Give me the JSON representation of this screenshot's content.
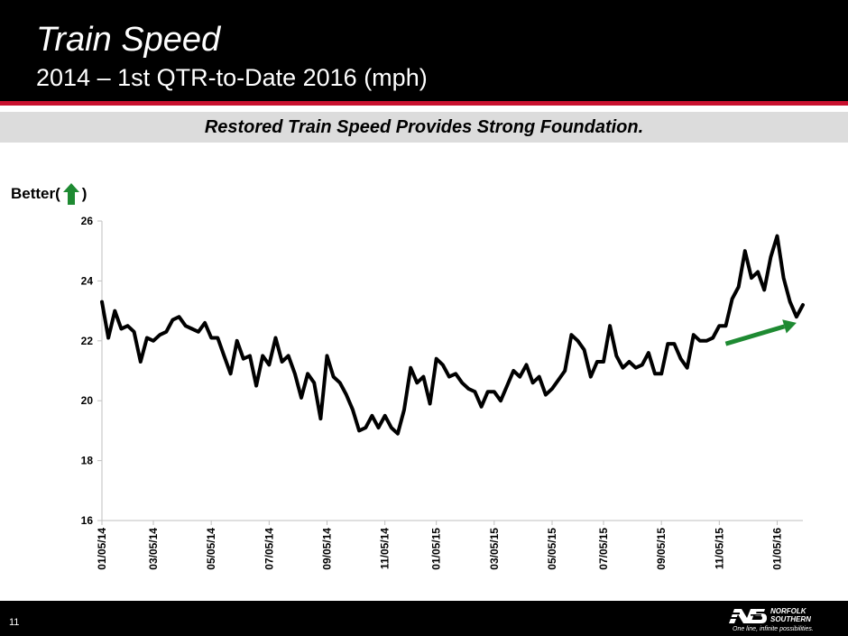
{
  "header": {
    "title": "Train Speed",
    "subtitle": "2014 – 1st QTR-to-Date 2016 (mph)"
  },
  "banner": {
    "text": "Restored Train Speed Provides Strong Foundation."
  },
  "annotation": {
    "better_prefix": "Better(",
    "better_suffix": ")",
    "icon": "green-up-arrow-icon"
  },
  "footer": {
    "page_number": "11",
    "logo": {
      "name": "NS",
      "line1": "NORFOLK",
      "line2": "SOUTHERN",
      "tagline": "One line, infinite possibilities."
    }
  },
  "colors": {
    "header_bg": "#000000",
    "accent_red": "#c8102e",
    "line": "#000000",
    "trend_arrow": "#1e8a32",
    "banner_bg": "#dcdcdc"
  },
  "chart_data": {
    "type": "line",
    "title": "",
    "xlabel": "",
    "ylabel": "",
    "ylim": [
      16,
      26
    ],
    "yticks": [
      16,
      18,
      20,
      22,
      24,
      26
    ],
    "grid": false,
    "legend": "none",
    "x_tick_labels": [
      "01/05/14",
      "03/05/14",
      "05/05/14",
      "07/05/14",
      "09/05/14",
      "11/05/14",
      "01/05/15",
      "03/05/15",
      "05/05/15",
      "07/05/15",
      "09/05/15",
      "11/05/15",
      "01/05/16"
    ],
    "x_tick_index": [
      0,
      8,
      17,
      26,
      35,
      44,
      52,
      61,
      70,
      78,
      87,
      96,
      105
    ],
    "series": [
      {
        "values": [
          23.3,
          22.1,
          23.0,
          22.4,
          22.5,
          22.3,
          21.3,
          22.1,
          22.0,
          22.2,
          22.3,
          22.7,
          22.8,
          22.5,
          22.4,
          22.3,
          22.6,
          22.1,
          22.1,
          21.5,
          20.9,
          22.0,
          21.4,
          21.5,
          20.5,
          21.5,
          21.2,
          22.1,
          21.3,
          21.5,
          20.9,
          20.1,
          20.9,
          20.6,
          19.4,
          21.5,
          20.8,
          20.6,
          20.2,
          19.7,
          19.0,
          19.1,
          19.5,
          19.1,
          19.5,
          19.1,
          18.9,
          19.7,
          21.1,
          20.6,
          20.8,
          19.9,
          21.4,
          21.2,
          20.8,
          20.9,
          20.6,
          20.4,
          20.3,
          19.8,
          20.3,
          20.3,
          20.0,
          20.5,
          21.0,
          20.8,
          21.2,
          20.6,
          20.8,
          20.2,
          20.4,
          20.7,
          21.0,
          22.2,
          22.0,
          21.7,
          20.8,
          21.3,
          21.3,
          22.5,
          21.5,
          21.1,
          21.3,
          21.1,
          21.2,
          21.6,
          20.9,
          20.9,
          21.9,
          21.9,
          21.4,
          21.1,
          22.2,
          22.0,
          22.0,
          22.1,
          22.5,
          22.5,
          23.4,
          23.8,
          25.0,
          24.1,
          24.3,
          23.7,
          24.8,
          25.5,
          24.1,
          23.3,
          22.8,
          23.2
        ]
      }
    ],
    "trend_arrow": {
      "from": [
        97,
        21.9
      ],
      "to": [
        108,
        22.6
      ]
    }
  }
}
